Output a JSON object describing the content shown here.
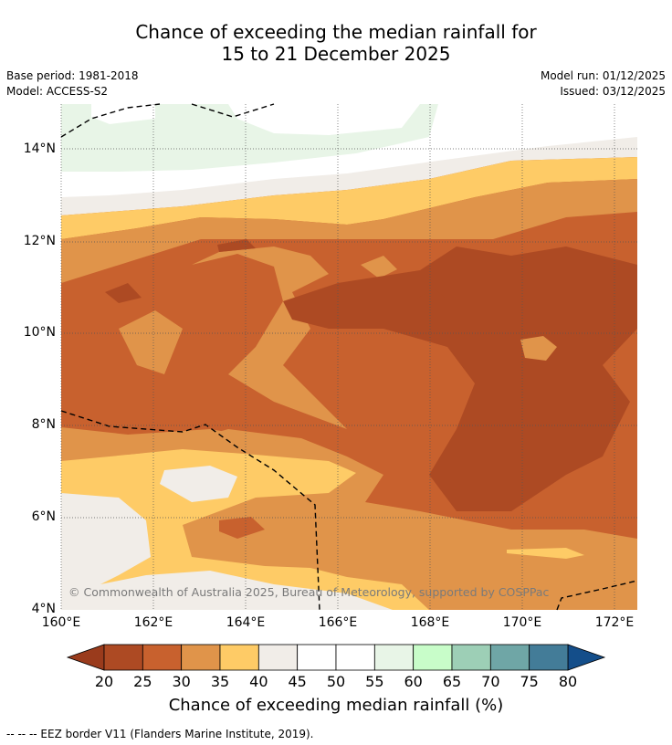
{
  "title": {
    "line1": "Chance of exceeding the median rainfall for",
    "line2": "15 to 21 December 2025"
  },
  "meta": {
    "base_period": "Base period: 1981-2018",
    "model": "Model: ACCESS-S2",
    "model_run": "Model run: 01/12/2025",
    "issued": "Issued: 03/12/2025"
  },
  "axes": {
    "lat_labels": [
      "14°N",
      "12°N",
      "10°N",
      "8°N",
      "6°N",
      "4°N"
    ],
    "lon_labels": [
      "160°E",
      "162°E",
      "164°E",
      "166°E",
      "168°E",
      "170°E",
      "172°E"
    ]
  },
  "copyright": "© Commonwealth of Australia 2025, Bureau of Meteorology, supported by COSPPac",
  "colorbar": {
    "title": "Chance of exceeding median rainfall (%)",
    "ticks": [
      "20",
      "25",
      "30",
      "35",
      "40",
      "45",
      "50",
      "55",
      "60",
      "65",
      "70",
      "75",
      "80"
    ],
    "under_color": "#9a3b1c",
    "over_color": "#144e8a",
    "colors": [
      "#ad4a23",
      "#c8612e",
      "#e0944a",
      "#fecb66",
      "#f1ede8",
      "#ffffff",
      "#ffffff",
      "#e8f5e7",
      "#c8fdc9",
      "#9dcfb6",
      "#6fa6a6",
      "#437c98"
    ]
  },
  "footer": "--  --  -- EEZ border V11 (Flanders Marine Institute, 2019)."
}
